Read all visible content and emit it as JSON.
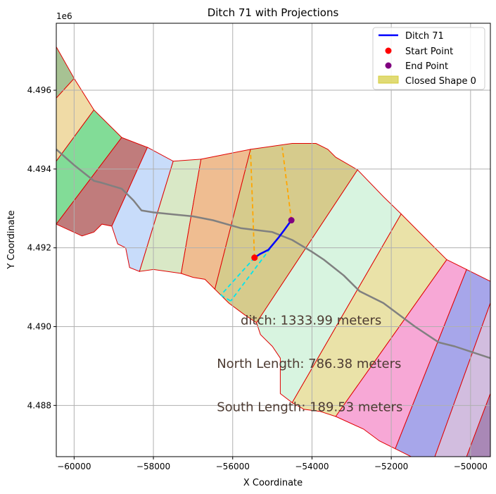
{
  "chart_data": {
    "type": "line",
    "title": "Ditch 71 with Projections",
    "xlabel": "X Coordinate",
    "ylabel": "Y Coordinate",
    "y_offset_label": "1e6",
    "xlim": [
      -60450,
      -49500
    ],
    "ylim": [
      4486700,
      4497700
    ],
    "xticks": [
      -60000,
      -58000,
      -56000,
      -54000,
      -52000,
      -50000
    ],
    "yticks": [
      4488000,
      4490000,
      4492000,
      4494000,
      4496000
    ],
    "xtick_labels": [
      "−60000",
      "−58000",
      "−56000",
      "−54000",
      "−52000",
      "−50000"
    ],
    "ytick_labels": [
      "4.488",
      "4.490",
      "4.492",
      "4.494",
      "4.496"
    ],
    "grid": true,
    "legend_position": "top-right",
    "legend": [
      {
        "label": "Ditch 71",
        "kind": "line",
        "color": "#0000ff"
      },
      {
        "label": "Start Point",
        "kind": "point",
        "color": "#ff0000"
      },
      {
        "label": "End Point",
        "kind": "point",
        "color": "#800080"
      },
      {
        "label": "Closed Shape 0",
        "kind": "patch",
        "color": "#d4cc3a"
      }
    ],
    "parcels": [
      {
        "color": "#a7c293",
        "points": [
          [
            -60450,
            4497100
          ],
          [
            -60000,
            4496300
          ],
          [
            -60450,
            4495800
          ]
        ]
      },
      {
        "color": "#f0dba6",
        "points": [
          [
            -60450,
            4495800
          ],
          [
            -60000,
            4496300
          ],
          [
            -59500,
            4495500
          ],
          [
            -60450,
            4494200
          ]
        ]
      },
      {
        "color": "#82dc97",
        "points": [
          [
            -60450,
            4494200
          ],
          [
            -59500,
            4495500
          ],
          [
            -58800,
            4494800
          ],
          [
            -60450,
            4492600
          ]
        ]
      },
      {
        "color": "#c07c7c",
        "points": [
          [
            -60450,
            4492600
          ],
          [
            -58800,
            4494800
          ],
          [
            -58150,
            4494550
          ],
          [
            -59050,
            4492550
          ],
          [
            -59300,
            4492600
          ],
          [
            -59500,
            4492400
          ],
          [
            -59800,
            4492300
          ]
        ]
      },
      {
        "color": "#c8dcfa",
        "points": [
          [
            -58150,
            4494550
          ],
          [
            -57500,
            4494200
          ],
          [
            -58350,
            4491400
          ],
          [
            -58600,
            4491500
          ],
          [
            -58700,
            4492000
          ],
          [
            -58900,
            4492100
          ],
          [
            -59050,
            4492550
          ]
        ]
      },
      {
        "color": "#d9e8c6",
        "points": [
          [
            -57500,
            4494200
          ],
          [
            -56800,
            4494250
          ],
          [
            -57300,
            4491350
          ],
          [
            -58000,
            4491450
          ],
          [
            -58350,
            4491400
          ]
        ]
      },
      {
        "color": "#efbd91",
        "points": [
          [
            -56800,
            4494250
          ],
          [
            -55550,
            4494500
          ],
          [
            -56450,
            4490950
          ],
          [
            -56700,
            4491200
          ],
          [
            -57000,
            4491250
          ],
          [
            -57300,
            4491350
          ]
        ]
      },
      {
        "color": "#d6cb8c",
        "points": [
          [
            -55550,
            4494500
          ],
          [
            -54500,
            4494650
          ],
          [
            -53900,
            4494650
          ],
          [
            -53600,
            4494500
          ],
          [
            -53400,
            4494300
          ],
          [
            -52850,
            4493980
          ],
          [
            -55400,
            4490100
          ],
          [
            -55700,
            4490300
          ],
          [
            -56100,
            4490600
          ],
          [
            -56450,
            4490950
          ]
        ]
      },
      {
        "color": "#d8f4e0",
        "points": [
          [
            -52850,
            4493980
          ],
          [
            -52200,
            4493300
          ],
          [
            -51750,
            4492860
          ],
          [
            -54500,
            4488070
          ],
          [
            -54800,
            4488300
          ],
          [
            -54800,
            4489200
          ],
          [
            -55000,
            4489500
          ],
          [
            -55300,
            4489800
          ],
          [
            -55400,
            4490100
          ]
        ]
      },
      {
        "color": "#eae2a8",
        "points": [
          [
            -51750,
            4492860
          ],
          [
            -51000,
            4492100
          ],
          [
            -50600,
            4491700
          ],
          [
            -53400,
            4487720
          ],
          [
            -53800,
            4487850
          ],
          [
            -54200,
            4487900
          ],
          [
            -54500,
            4488070
          ]
        ]
      },
      {
        "color": "#f7a8d6",
        "points": [
          [
            -50600,
            4491700
          ],
          [
            -50100,
            4491450
          ],
          [
            -51900,
            4486900
          ],
          [
            -52300,
            4487100
          ],
          [
            -52700,
            4487400
          ],
          [
            -53400,
            4487720
          ]
        ]
      },
      {
        "color": "#a7a6ea",
        "points": [
          [
            -50100,
            4491450
          ],
          [
            -49500,
            4491150
          ],
          [
            -49500,
            4490600
          ],
          [
            -50900,
            4486700
          ],
          [
            -51500,
            4486700
          ],
          [
            -51900,
            4486900
          ]
        ]
      },
      {
        "color": "#d2bddf",
        "points": [
          [
            -49500,
            4490600
          ],
          [
            -49500,
            4488300
          ],
          [
            -50100,
            4486700
          ],
          [
            -50900,
            4486700
          ]
        ]
      },
      {
        "color": "#a988b6",
        "points": [
          [
            -49500,
            4488300
          ],
          [
            -49500,
            4486700
          ],
          [
            -50100,
            4486700
          ]
        ]
      }
    ],
    "series": [
      {
        "name": "Ditch 71",
        "color": "#0000ff",
        "x": [
          -55450,
          -55300,
          -55100,
          -54850,
          -54700,
          -54520
        ],
        "y": [
          4491750,
          4491850,
          4491950,
          4492250,
          4492450,
          4492700
        ]
      }
    ],
    "gray_ditch": {
      "color": "#808080",
      "x": [
        -60450,
        -60000,
        -59500,
        -59300,
        -58800,
        -58500,
        -58300,
        -58000,
        -57500,
        -57000,
        -56500,
        -55800,
        -55000,
        -54500,
        -54000,
        -53700,
        -53200,
        -52800,
        -52200,
        -51400,
        -50800,
        -50400,
        -49500
      ],
      "y": [
        4494500,
        4494100,
        4493700,
        4493650,
        4493500,
        4493200,
        4492950,
        4492900,
        4492850,
        4492800,
        4492700,
        4492500,
        4492400,
        4492200,
        4491900,
        4491700,
        4491300,
        4490900,
        4490600,
        4490000,
        4489600,
        4489500,
        4489200
      ]
    },
    "start_point": {
      "x": -55450,
      "y": 4491750,
      "color": "#ff0000"
    },
    "end_point": {
      "x": -54520,
      "y": 4492700,
      "color": "#800080"
    },
    "projections": [
      {
        "color": "#ffa500",
        "points": [
          [
            -55450,
            4491750
          ],
          [
            -55550,
            4494450
          ]
        ]
      },
      {
        "color": "#ffa500",
        "points": [
          [
            -54520,
            4492700
          ],
          [
            -54750,
            4494550
          ]
        ]
      },
      {
        "color": "#00e5ee",
        "points": [
          [
            -55450,
            4491750
          ],
          [
            -56300,
            4490800
          ]
        ]
      },
      {
        "color": "#00e5ee",
        "points": [
          [
            -54520,
            4492700
          ],
          [
            -56050,
            4490650
          ]
        ]
      },
      {
        "color": "#00e5ee",
        "points": [
          [
            -56300,
            4490800
          ],
          [
            -56050,
            4490650
          ]
        ]
      }
    ],
    "annotations": [
      {
        "text": "ditch: 1333.99 meters",
        "x": -55800,
        "y": 4490050
      },
      {
        "text": "North Length: 786.38 meters",
        "x": -56400,
        "y": 4488950
      },
      {
        "text": "South Length: 189.53 meters",
        "x": -56400,
        "y": 4487850
      }
    ]
  }
}
